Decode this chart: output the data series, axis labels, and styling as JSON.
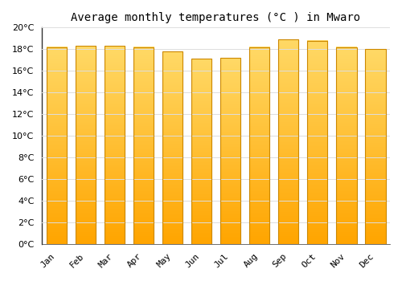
{
  "months": [
    "Jan",
    "Feb",
    "Mar",
    "Apr",
    "May",
    "Jun",
    "Jul",
    "Aug",
    "Sep",
    "Oct",
    "Nov",
    "Dec"
  ],
  "values": [
    18.2,
    18.3,
    18.3,
    18.2,
    17.8,
    17.1,
    17.2,
    18.2,
    18.9,
    18.8,
    18.2,
    18.0
  ],
  "bar_color_bottom": "#FFA500",
  "bar_color_top": "#FFD966",
  "bar_border_color": "#CC8800",
  "title": "Average monthly temperatures (°C ) in Mwaro",
  "ylim": [
    0,
    20
  ],
  "ytick_step": 2,
  "background_color": "#FFFFFF",
  "grid_color": "#DDDDDD",
  "title_fontsize": 10,
  "tick_fontsize": 8,
  "bar_width": 0.7
}
